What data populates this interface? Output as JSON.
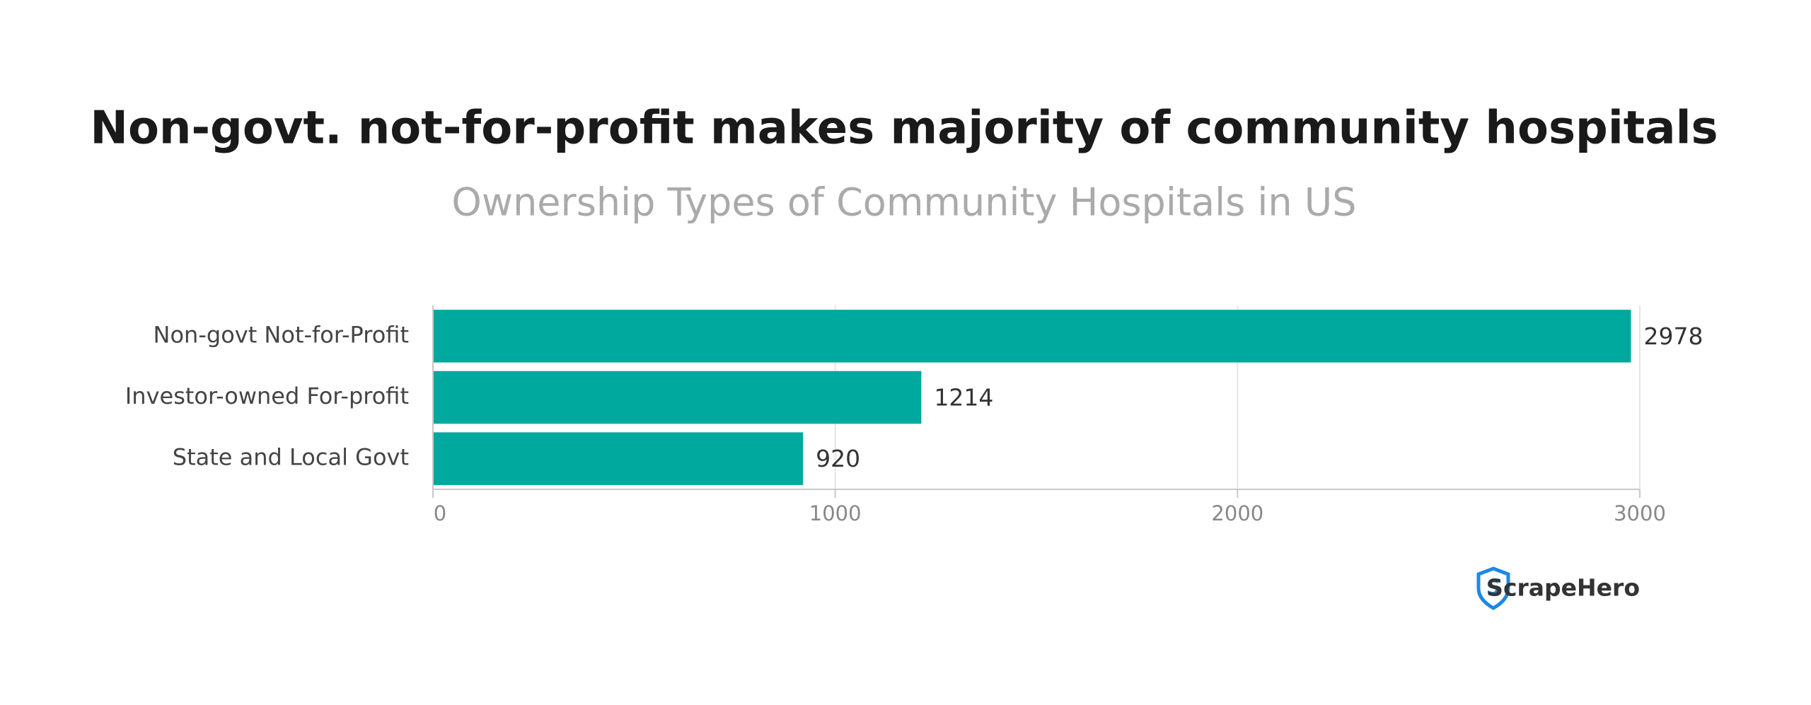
{
  "chart_data": {
    "type": "bar",
    "orientation": "horizontal",
    "title": "Non-govt. not-for-profit makes majority of community hospitals",
    "subtitle": "Ownership Types of Community Hospitals in US",
    "categories": [
      "Non-govt Not-for-Profit",
      "Investor-owned For-profit",
      "State and Local Govt"
    ],
    "values": [
      2978,
      1214,
      920
    ],
    "color": "#00a99d",
    "xlim": [
      0,
      3000
    ],
    "xticks": [
      0,
      1000,
      2000,
      3000
    ],
    "grid": true
  },
  "brand": "ScrapeHero"
}
